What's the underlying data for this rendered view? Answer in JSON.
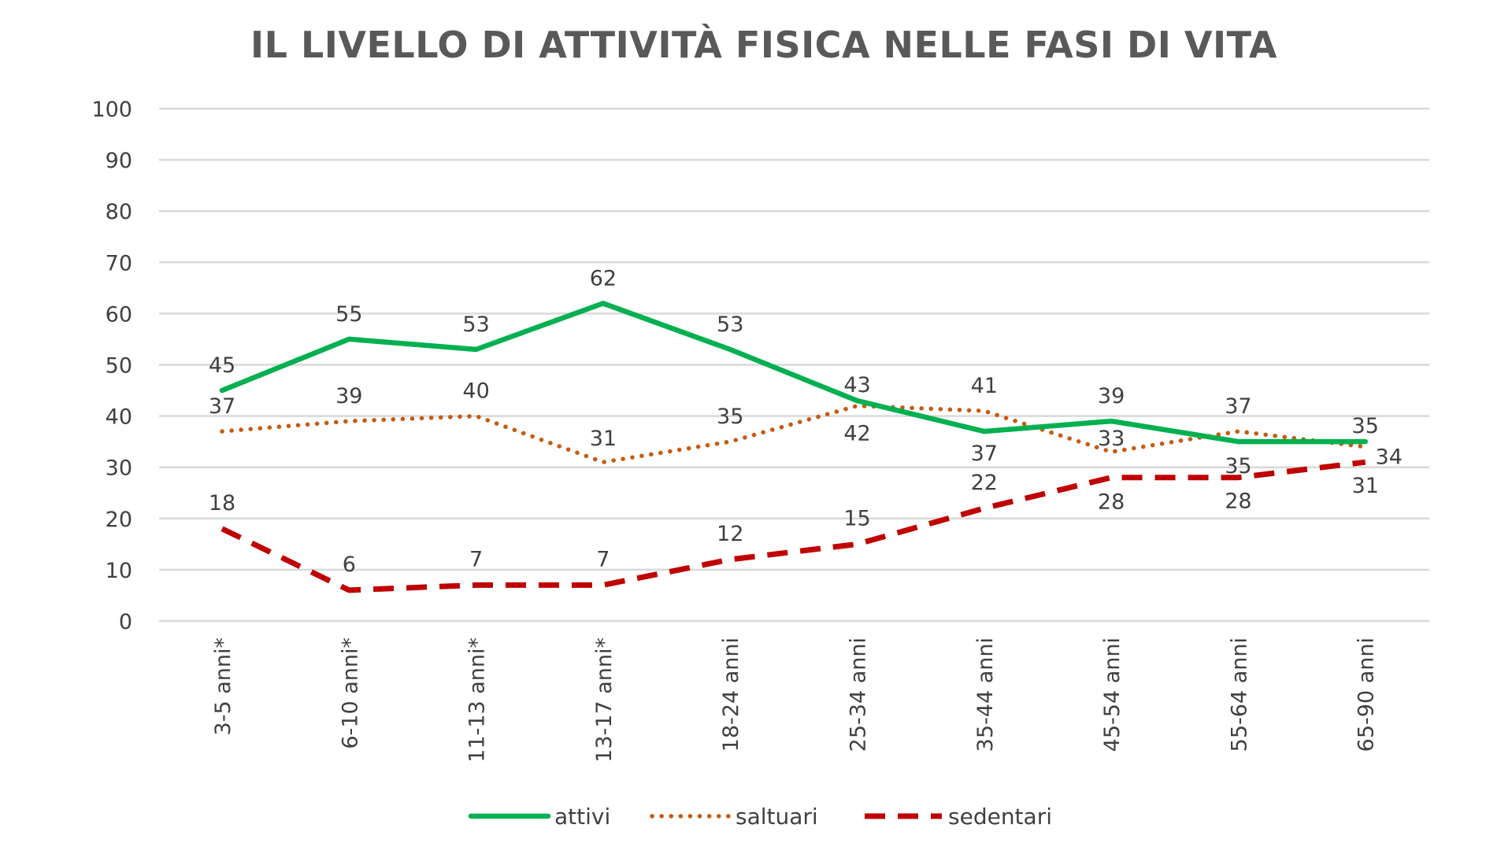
{
  "chart_data": {
    "type": "line",
    "title": "IL LIVELLO DI ATTIVITÀ FISICA NELLE FASI DI VITA",
    "categories": [
      "3-5 anni*",
      "6-10 anni*",
      "11-13 anni*",
      "13-17 anni*",
      "18-24 anni",
      "25-34 anni",
      "35-44 anni",
      "45-54 anni",
      "55-64 anni",
      "65-90 anni"
    ],
    "ylim": [
      0,
      100
    ],
    "yticks": [
      "0",
      "10",
      "20",
      "30",
      "40",
      "50",
      "60",
      "70",
      "80",
      "90",
      "100"
    ],
    "grid": true,
    "legend_position": "bottom",
    "series": [
      {
        "name": "attivi",
        "values": [
          45,
          55,
          53,
          62,
          53,
          43,
          37,
          39,
          35,
          35
        ],
        "color": "#00B050",
        "style": "solid"
      },
      {
        "name": "saltuari",
        "values": [
          37,
          39,
          40,
          31,
          35,
          42,
          41,
          33,
          37,
          34
        ],
        "color": "#C55A11",
        "style": "dotted"
      },
      {
        "name": "sedentari",
        "values": [
          18,
          6,
          7,
          7,
          12,
          15,
          22,
          28,
          28,
          31
        ],
        "color": "#C00000",
        "style": "dashed"
      }
    ]
  }
}
